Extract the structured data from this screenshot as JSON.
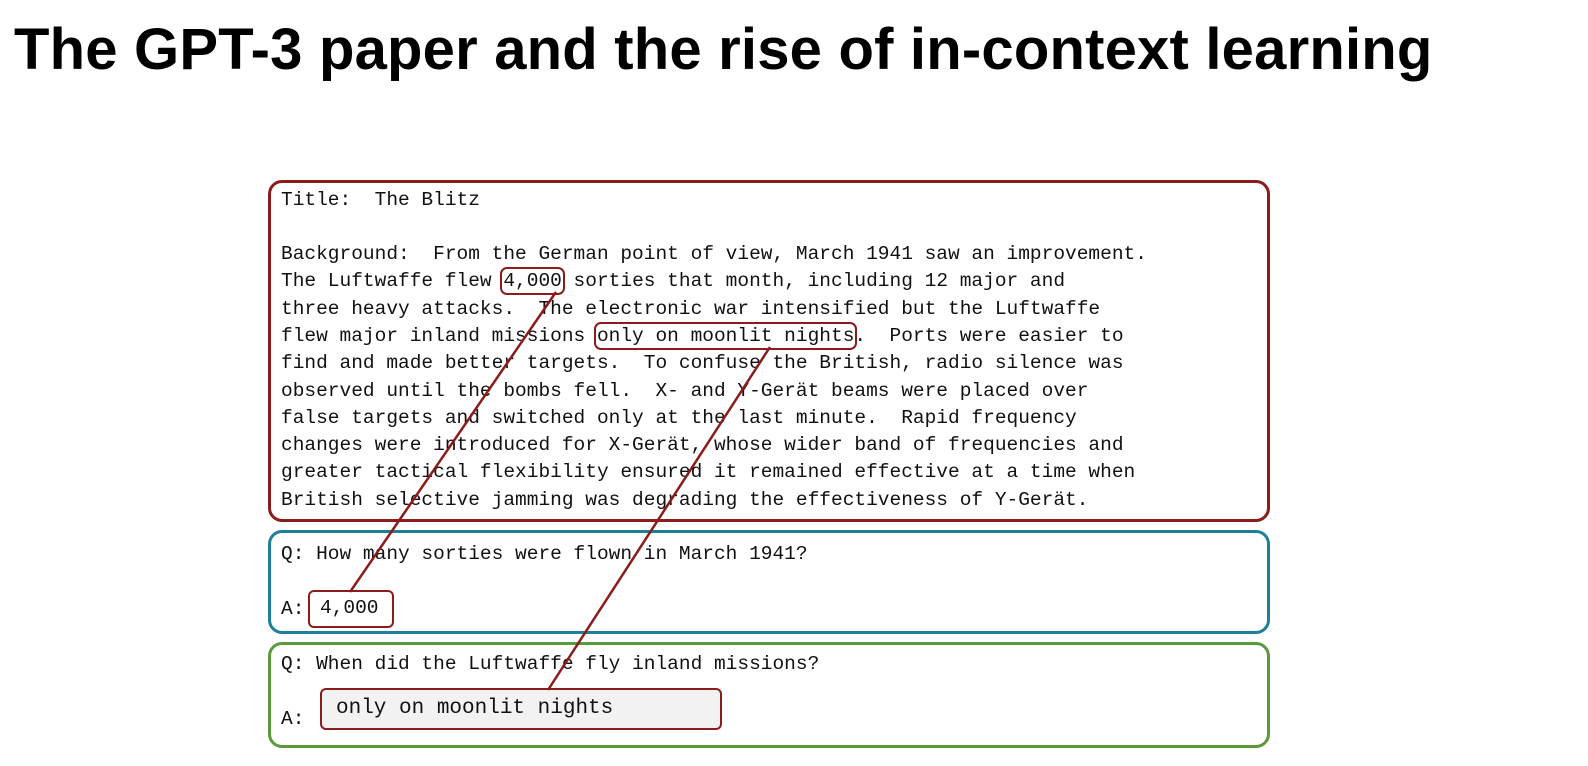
{
  "slide": {
    "title": "The GPT-3 paper and the rise of in-context learning"
  },
  "context": {
    "title_line": "Title:  The Blitz",
    "background_lines": [
      [
        "Background:  From the German point of view, March 1941 saw an improvement."
      ],
      [
        "The Luftwaffe flew ",
        {
          "hl": "4,000"
        },
        " sorties that month, including 12 major and"
      ],
      [
        "three heavy attacks.  The electronic war intensified but the Luftwaffe"
      ],
      [
        "flew major inland missions ",
        {
          "hl": "only on moonlit nights"
        },
        ".  Ports were easier to"
      ],
      [
        "find and made better targets.  To confuse the British, radio silence was"
      ],
      [
        "observed until the bombs fell.  X- and Y-Gerät beams were placed over"
      ],
      [
        "false targets and switched only at the last minute.  Rapid frequency"
      ],
      [
        "changes were introduced for X-Gerät, whose wider band of frequencies and"
      ],
      [
        "greater tactical flexibility ensured it remained effective at a time when"
      ],
      [
        "British selective jamming was degrading the effectiveness of Y-Gerät."
      ]
    ]
  },
  "qa": [
    {
      "question": "Q: How many sorties were flown in March 1941?",
      "answer_label": "A:",
      "answer": "4,000"
    },
    {
      "question": "Q: When did the Luftwaffe fly inland missions?",
      "answer_label": "A:",
      "answer": "only on moonlit nights"
    }
  ],
  "colors": {
    "context_border": "#8b1c1c",
    "qa1_border": "#1d7f9c",
    "qa2_border": "#5a9a3c",
    "connector": "#8b1c1c"
  }
}
